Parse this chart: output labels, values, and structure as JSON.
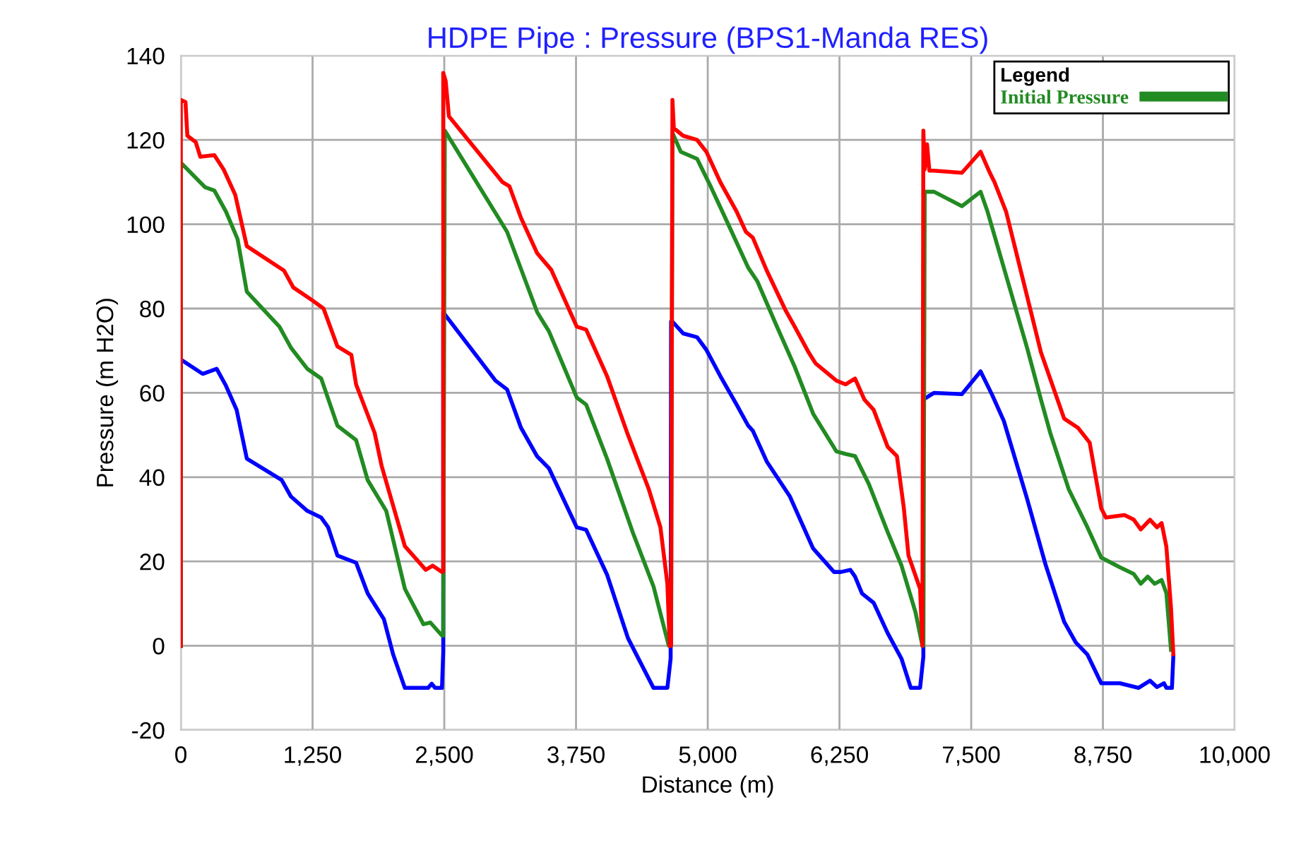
{
  "chart_data": {
    "type": "line",
    "title": "HDPE Pipe : Pressure (BPS1-Manda RES)",
    "xlabel": "Distance (m)",
    "ylabel": "Pressure (m H2O)",
    "legend_title": "Legend",
    "xlim": [
      0,
      10000
    ],
    "ylim": [
      -20,
      140
    ],
    "xticks": [
      {
        "value": 0,
        "label": "0"
      },
      {
        "value": 1250,
        "label": "1,250"
      },
      {
        "value": 2500,
        "label": "2,500"
      },
      {
        "value": 3750,
        "label": "3,750"
      },
      {
        "value": 5000,
        "label": "5,000"
      },
      {
        "value": 6250,
        "label": "6,250"
      },
      {
        "value": 7500,
        "label": "7,500"
      },
      {
        "value": 8750,
        "label": "8,750"
      },
      {
        "value": 10000,
        "label": "10,000"
      }
    ],
    "yticks": [
      -20,
      0,
      20,
      40,
      60,
      80,
      100,
      120,
      140
    ],
    "grid": true,
    "legend": "top right",
    "marker": "none",
    "line_style": "solid",
    "series": [
      {
        "color": "#0000ff",
        "x": [
          0,
          0,
          207,
          340,
          428,
          529,
          626,
          957,
          1045,
          1200,
          1332,
          1398,
          1486,
          1663,
          1773,
          1927,
          2015,
          2126,
          2346,
          2381,
          2412,
          2478,
          2490,
          2490,
          2986,
          3096,
          3228,
          3382,
          3493,
          3757,
          3846,
          4044,
          4243,
          4485,
          4617,
          4648,
          4652,
          4665,
          4766,
          4899,
          4987,
          5119,
          5274,
          5384,
          5428,
          5560,
          5780,
          5999,
          6198,
          6265,
          6353,
          6398,
          6464,
          6574,
          6707,
          6839,
          6927,
          7015,
          7046,
          7046,
          7148,
          7412,
          7589,
          7699,
          7810,
          8030,
          8206,
          8382,
          8492,
          8603,
          8734,
          8911,
          9087,
          9197,
          9263,
          9330,
          9352,
          9405,
          9418
        ],
        "values": [
          0,
          67.9,
          64.5,
          65.7,
          61.7,
          56,
          44.4,
          39.3,
          35.4,
          32,
          30.4,
          28.1,
          21.4,
          19.7,
          12.4,
          6.3,
          -2.1,
          -10,
          -10,
          -9,
          -10,
          -10,
          -1.5,
          79.1,
          62.9,
          60.8,
          51.7,
          44.9,
          42.1,
          28.1,
          27.5,
          16.9,
          1.8,
          -10,
          -10,
          -3,
          76.9,
          76.9,
          74.1,
          73.2,
          70.2,
          64,
          57.2,
          52.2,
          51,
          43.7,
          35.4,
          23.1,
          17.5,
          17.5,
          18,
          16.4,
          12.4,
          10.2,
          3,
          -3.1,
          -10,
          -10,
          -2.6,
          58.4,
          60,
          59.7,
          65.1,
          59.5,
          53.3,
          34.9,
          19.2,
          5.7,
          0.8,
          -2.1,
          -8.9,
          -8.9,
          -10,
          -8.3,
          -9.8,
          -8.9,
          -10,
          -10,
          -2.6
        ]
      },
      {
        "name": "Initial Pressure",
        "color": "#228b22",
        "x": [
          0,
          0,
          229,
          318,
          428,
          538,
          626,
          935,
          1045,
          1200,
          1332,
          1486,
          1663,
          1773,
          1949,
          2126,
          2302,
          2368,
          2478,
          2490,
          2505,
          3096,
          3382,
          3493,
          3757,
          3846,
          4044,
          4287,
          4485,
          4630,
          4652,
          4665,
          4744,
          4899,
          5031,
          5207,
          5384,
          5472,
          5648,
          5825,
          6001,
          6221,
          6309,
          6398,
          6530,
          6707,
          6839,
          6971,
          7037,
          7046,
          7059,
          7148,
          7412,
          7589,
          7655,
          8030,
          8162,
          8250,
          8426,
          8603,
          8734,
          8911,
          9043,
          9109,
          9175,
          9241,
          9307,
          9352,
          9396
        ],
        "values": [
          0,
          114.6,
          108.8,
          108,
          103,
          96.5,
          84,
          75.7,
          70.7,
          65.7,
          63.4,
          52.2,
          48.8,
          39.3,
          32,
          13.5,
          5.1,
          5.5,
          2.4,
          2.4,
          122.2,
          98.2,
          79.1,
          74.6,
          58.9,
          57.2,
          44.4,
          27,
          14.1,
          0,
          0,
          121.7,
          117.2,
          115.5,
          108.8,
          99.3,
          89.7,
          86.4,
          76.2,
          66.2,
          55,
          46.1,
          45.5,
          45,
          38.3,
          27,
          19,
          8,
          0,
          0,
          107.7,
          107.7,
          104.3,
          107.7,
          103,
          70.7,
          58.4,
          50.5,
          37.1,
          28.1,
          20.9,
          18.6,
          17,
          14.7,
          16.4,
          14.7,
          15.6,
          12.5,
          -1
        ]
      },
      {
        "color": "#ff0000",
        "x": [
          0,
          0,
          44,
          62,
          141,
          185,
          318,
          406,
          516,
          626,
          979,
          1067,
          1244,
          1354,
          1486,
          1618,
          1663,
          1839,
          1905,
          2126,
          2324,
          2390,
          2478,
          2490,
          2490,
          2513,
          2544,
          3052,
          3118,
          3228,
          3382,
          3515,
          3757,
          3846,
          4044,
          4243,
          4441,
          4551,
          4617,
          4639,
          4652,
          4665,
          4678,
          4766,
          4899,
          4987,
          5119,
          5274,
          5362,
          5428,
          5560,
          5736,
          5825,
          5957,
          6023,
          6221,
          6309,
          6398,
          6486,
          6574,
          6707,
          6795,
          6861,
          6905,
          7015,
          7037,
          7046,
          7059,
          7081,
          7103,
          7148,
          7412,
          7589,
          7677,
          7721,
          7831,
          7985,
          8162,
          8382,
          8514,
          8624,
          8734,
          8778,
          8955,
          9043,
          9109,
          9197,
          9263,
          9307,
          9352,
          9396,
          9418
        ],
        "values": [
          0,
          129.5,
          129,
          121,
          119.5,
          116,
          116.4,
          113,
          107,
          94.8,
          89,
          85,
          82,
          80,
          71,
          69,
          62,
          50.5,
          42.7,
          23.6,
          18,
          19,
          17.5,
          17.6,
          135.9,
          134,
          125.6,
          110,
          109,
          101.5,
          93.1,
          89.2,
          75.7,
          75,
          64,
          50,
          37.1,
          28.1,
          14.7,
          0,
          0,
          129.5,
          122.8,
          121,
          120,
          117.2,
          110,
          103,
          98.2,
          96.8,
          89,
          79.7,
          75.7,
          69.6,
          67,
          62.9,
          62,
          63.4,
          58.4,
          56,
          47.2,
          45,
          32.6,
          21.4,
          13.5,
          0,
          122.2,
          113,
          119,
          112.7,
          112.7,
          112.2,
          117.2,
          112.2,
          110,
          103,
          87.5,
          69.6,
          53.9,
          51.7,
          48.2,
          32.6,
          30.4,
          31,
          29.9,
          27.6,
          29.9,
          28.1,
          29.1,
          23.5,
          9,
          -2
        ]
      }
    ]
  }
}
